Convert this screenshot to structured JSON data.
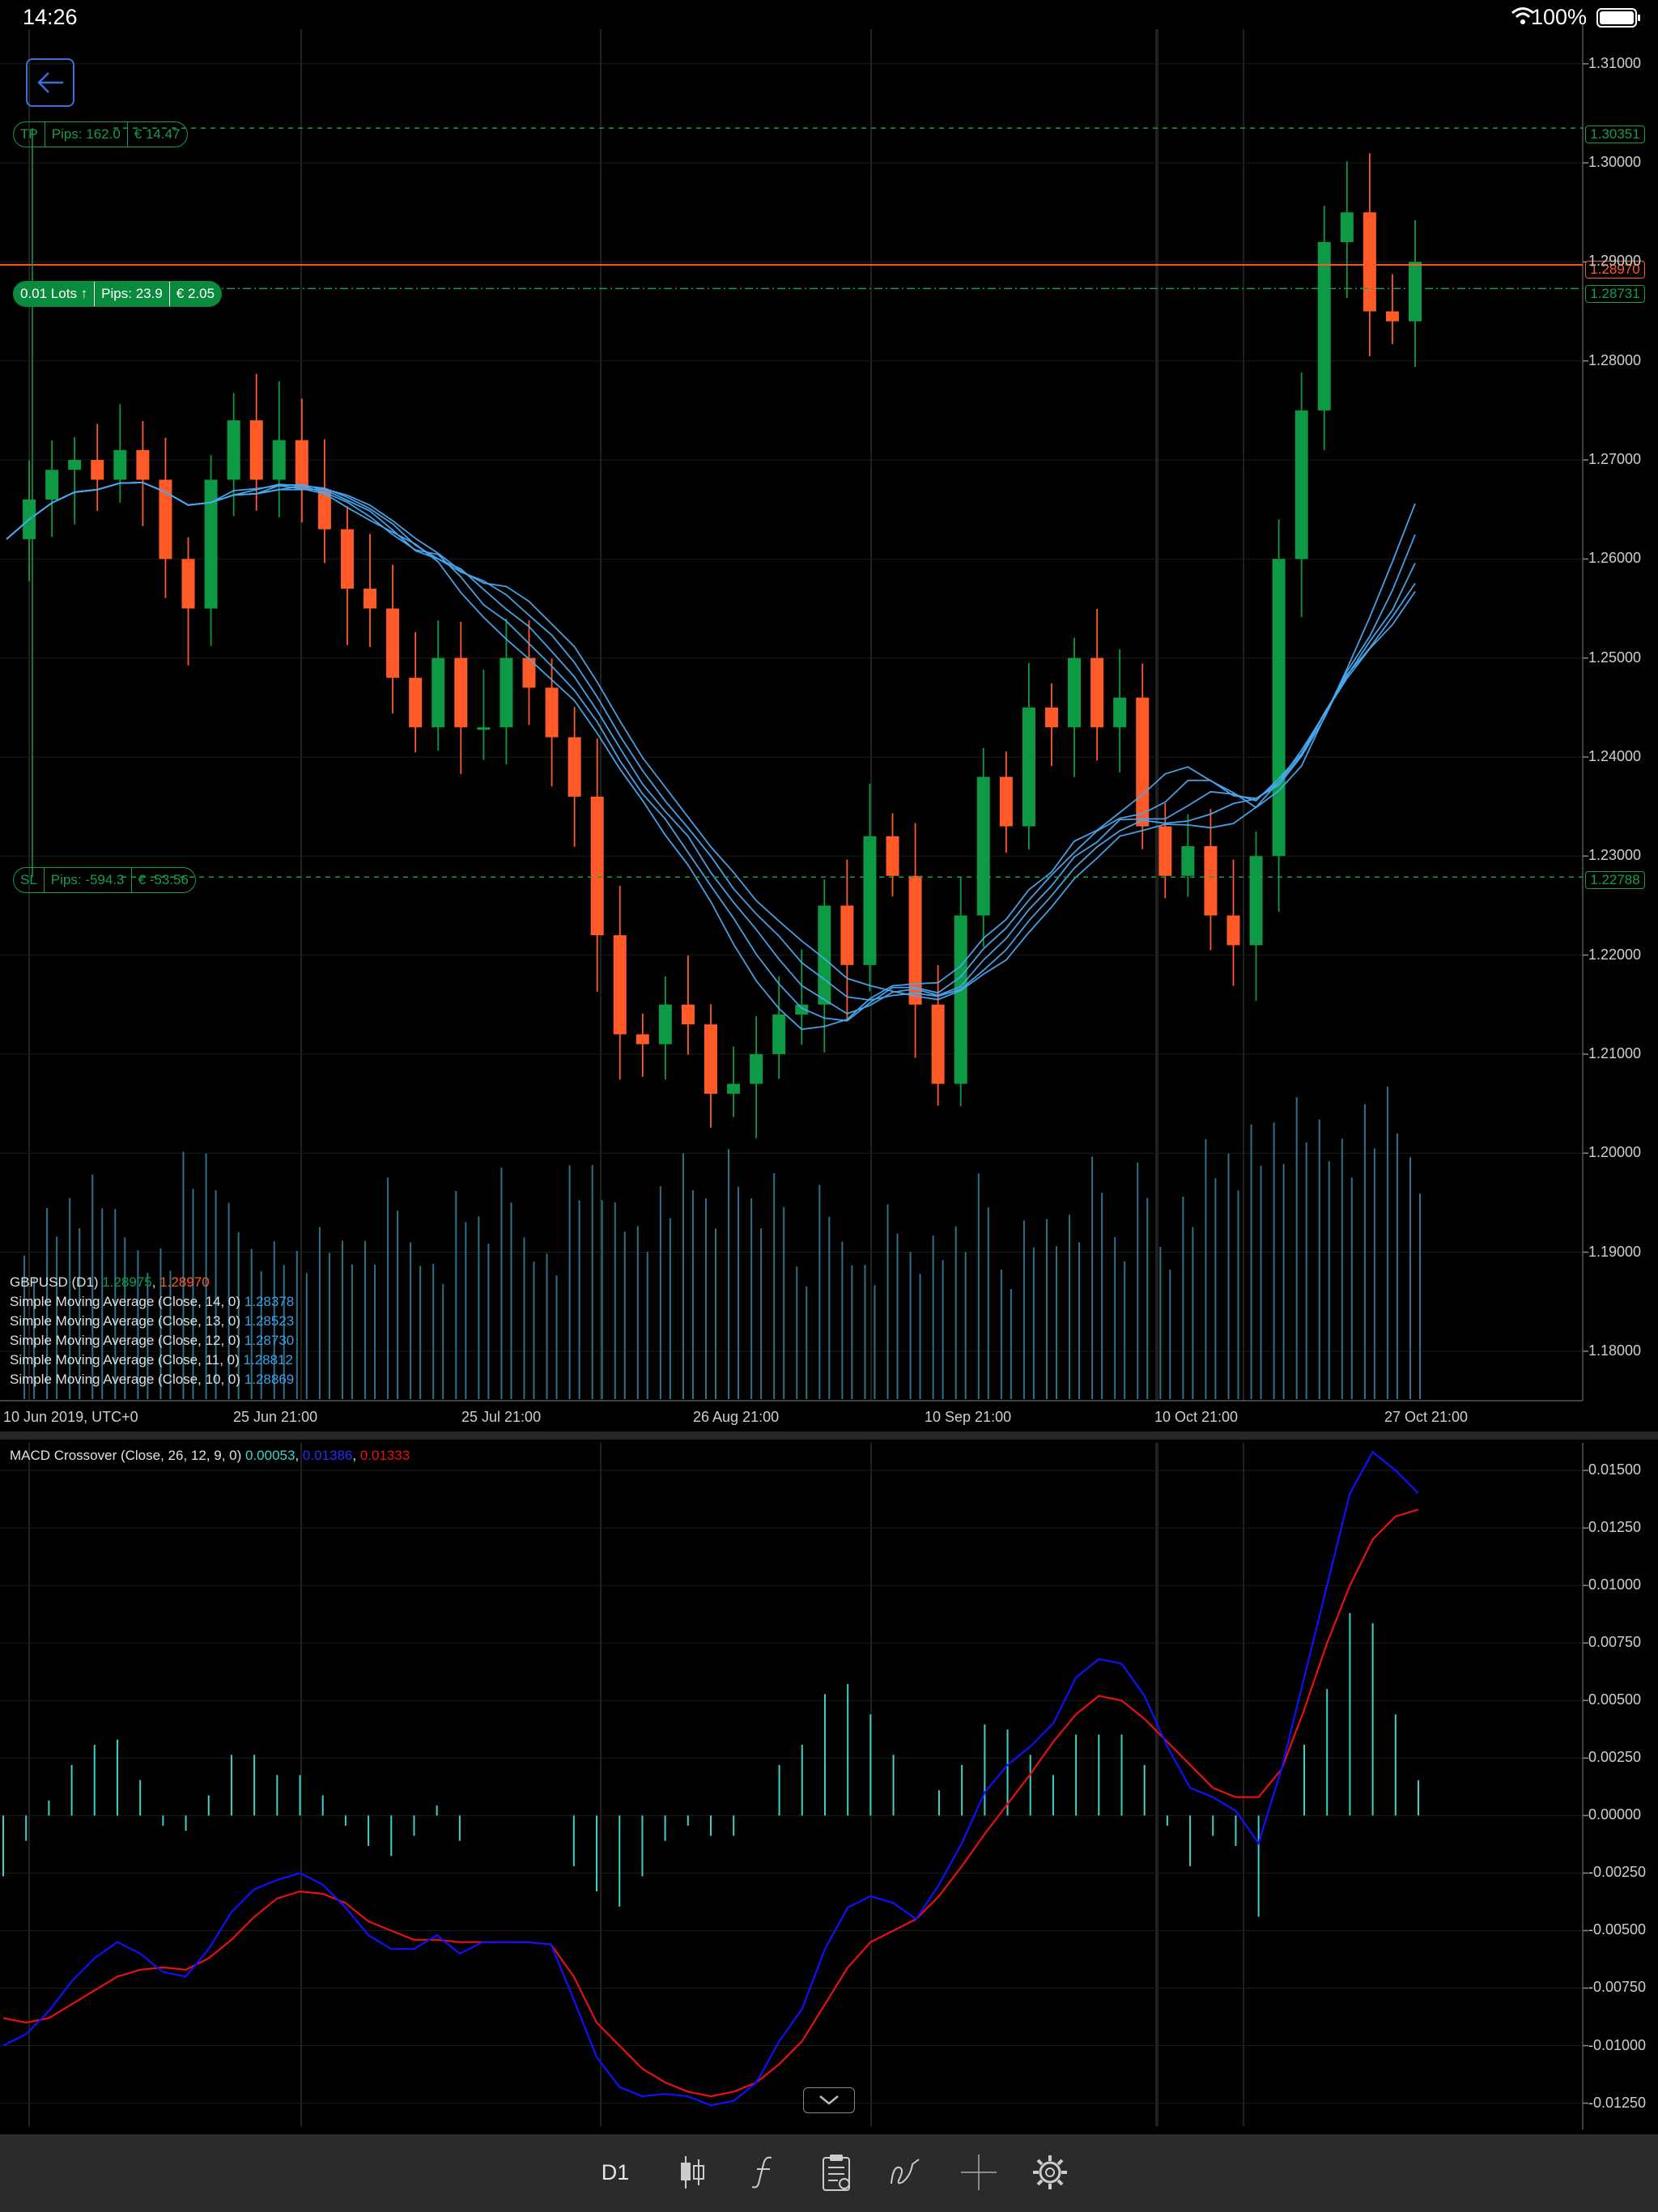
{
  "status_bar": {
    "time": "14:26",
    "battery": "100%"
  },
  "chart_data": [
    {
      "type": "candlestick",
      "title": "GBPUSD (D1)",
      "ylim": [
        1.175,
        1.3135
      ],
      "y_ticks": [
        "1.31000",
        "1.30000",
        "1.29000",
        "1.28000",
        "1.27000",
        "1.26000",
        "1.25000",
        "1.24000",
        "1.23000",
        "1.22000",
        "1.21000",
        "1.20000",
        "1.19000",
        "1.18000"
      ],
      "x_ticks": [
        "10 Jun 2019, UTC+0",
        "25 Jun 21:00",
        "25 Jul 21:00",
        "26 Aug 21:00",
        "10 Sep 21:00",
        "10 Oct 21:00",
        "27 Oct 21:00"
      ],
      "close_path": [
        1.262,
        1.266,
        1.269,
        1.27,
        1.268,
        1.271,
        1.268,
        1.26,
        1.255,
        1.268,
        1.274,
        1.268,
        1.272,
        1.267,
        1.263,
        1.257,
        1.255,
        1.248,
        1.243,
        1.25,
        1.243,
        1.243,
        1.25,
        1.247,
        1.242,
        1.236,
        1.222,
        1.212,
        1.211,
        1.215,
        1.213,
        1.206,
        1.207,
        1.21,
        1.214,
        1.215,
        1.225,
        1.219,
        1.232,
        1.228,
        1.215,
        1.207,
        1.224,
        1.238,
        1.233,
        1.245,
        1.243,
        1.25,
        1.243,
        1.246,
        1.233,
        1.228,
        1.231,
        1.224,
        1.221,
        1.23,
        1.26,
        1.275,
        1.292,
        1.295,
        1.285,
        1.284,
        1.29
      ],
      "series_legend": [
        {
          "name": "Simple Moving Average (Close, 14, 0)",
          "value": "1.28378"
        },
        {
          "name": "Simple Moving Average (Close, 13, 0)",
          "value": "1.28523"
        },
        {
          "name": "Simple Moving Average (Close, 12, 0)",
          "value": "1.28730"
        },
        {
          "name": "Simple Moving Average (Close, 11, 0)",
          "value": "1.28812"
        },
        {
          "name": "Simple Moving Average (Close, 10, 0)",
          "value": "1.28869"
        }
      ],
      "symbol_values": {
        "bid": "1.28975",
        "ask": "1.28970"
      },
      "price_tags": {
        "tp": "1.30351",
        "current": "1.28970",
        "entry": "1.28731",
        "sl": "1.22788"
      },
      "price_levels": {
        "tp": 1.30351,
        "current": 1.2897,
        "entry": 1.28731,
        "sl": 1.22788
      }
    },
    {
      "type": "line",
      "title": "MACD Crossover (Close, 26, 12, 9, 0)",
      "values_text": {
        "hist": "0.00053",
        "macd": "0.01386",
        "signal": "0.01333"
      },
      "ylim": [
        -0.0135,
        0.0162
      ],
      "y_ticks": [
        "0.01500",
        "0.01250",
        "0.01000",
        "0.00750",
        "0.00500",
        "0.00250",
        "0.00000",
        "-0.00250",
        "-0.00500",
        "-0.00750",
        "-0.01000",
        "-0.01250"
      ],
      "macd": [
        -0.01,
        -0.0095,
        -0.0085,
        -0.0072,
        -0.0062,
        -0.0055,
        -0.006,
        -0.0068,
        -0.007,
        -0.0058,
        -0.0042,
        -0.0032,
        -0.0028,
        -0.0025,
        -0.003,
        -0.004,
        -0.0052,
        -0.0058,
        -0.0058,
        -0.0052,
        -0.006,
        -0.0055,
        -0.0055,
        -0.0055,
        -0.0056,
        -0.008,
        -0.0105,
        -0.0118,
        -0.0122,
        -0.0121,
        -0.0122,
        -0.0126,
        -0.0124,
        -0.0116,
        -0.0098,
        -0.0084,
        -0.0058,
        -0.004,
        -0.0035,
        -0.0038,
        -0.0045,
        -0.003,
        -0.0012,
        0.001,
        0.0022,
        0.003,
        0.004,
        0.006,
        0.0068,
        0.0066,
        0.0052,
        0.003,
        0.0012,
        0.0008,
        0.0002,
        -0.0012,
        0.002,
        0.006,
        0.01,
        0.014,
        0.0158,
        0.015,
        0.014
      ],
      "signal": [
        -0.0088,
        -0.009,
        -0.0088,
        -0.0082,
        -0.0076,
        -0.007,
        -0.0067,
        -0.0066,
        -0.0067,
        -0.0062,
        -0.0054,
        -0.0044,
        -0.0036,
        -0.0033,
        -0.0034,
        -0.0038,
        -0.0046,
        -0.005,
        -0.0054,
        -0.0054,
        -0.0055,
        -0.0055,
        -0.0055,
        -0.0055,
        -0.0056,
        -0.007,
        -0.009,
        -0.01,
        -0.011,
        -0.0116,
        -0.012,
        -0.0122,
        -0.012,
        -0.0116,
        -0.0108,
        -0.0098,
        -0.0082,
        -0.0066,
        -0.0055,
        -0.005,
        -0.0045,
        -0.0035,
        -0.0022,
        -0.0008,
        0.0005,
        0.0018,
        0.0032,
        0.0044,
        0.0052,
        0.005,
        0.0042,
        0.0032,
        0.0022,
        0.0012,
        0.0008,
        0.0008,
        0.002,
        0.0046,
        0.0075,
        0.01,
        0.012,
        0.013,
        0.0133
      ]
    }
  ],
  "toolbar": {
    "timeframe_label": "D1",
    "icons": [
      "candles-icon",
      "function-icon",
      "clipboard-icon",
      "draw-icon",
      "crosshair-icon",
      "gear-icon"
    ]
  },
  "labels": {
    "tp": "TP",
    "tp_pips": "Pips: 162.0",
    "tp_money": "€ 14.47",
    "lots": "0.01 Lots ↑",
    "pos_pips": "Pips: 23.9",
    "pos_money": "€ 2.05",
    "sl": "SL",
    "sl_pips": "Pips: -594.3",
    "sl_money": "€ -53.56"
  },
  "colors": {
    "bull": "#0e9a45",
    "bear": "#ff5a28",
    "sma": "#4aa8ee",
    "macd": "#1010ff",
    "signal": "#e81010",
    "hist": "#3fd0c8",
    "volume": "#2f6f8a",
    "level": "#1a9b4a",
    "current": "#ff5a28"
  }
}
